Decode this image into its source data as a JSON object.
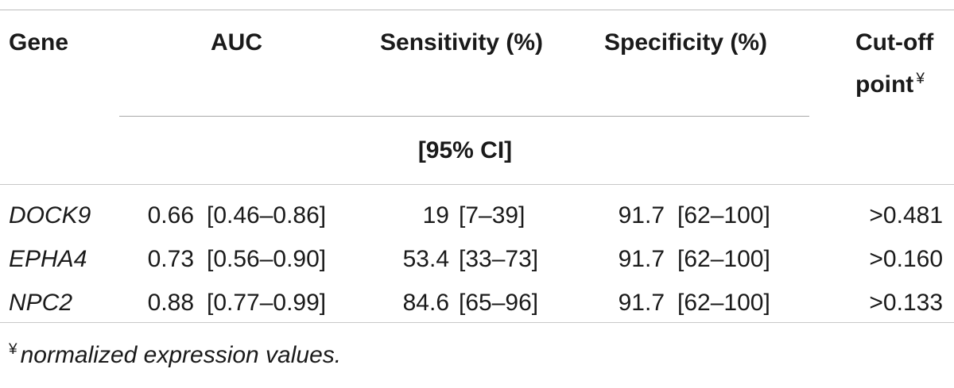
{
  "table": {
    "headers": {
      "gene": "Gene",
      "auc": "AUC",
      "sensitivity": "Sensitivity (%)",
      "specificity": "Specificity (%)",
      "cutoff_line1": "Cut-off",
      "cutoff_line2": "point",
      "cutoff_symbol": "¥",
      "ci": "[95% CI]"
    },
    "rows": [
      {
        "gene": "DOCK9",
        "auc_value": "0.66",
        "auc_ci": "[0.46–0.86]",
        "sens_value": "19",
        "sens_ci": "[7–39]",
        "spec_value": "91.7",
        "spec_ci": "[62–100]",
        "cutoff": ">0.481"
      },
      {
        "gene": "EPHA4",
        "auc_value": "0.73",
        "auc_ci": "[0.56–0.90]",
        "sens_value": "53.4",
        "sens_ci": "[33–73]",
        "spec_value": "91.7",
        "spec_ci": "[62–100]",
        "cutoff": ">0.160"
      },
      {
        "gene": "NPC2",
        "auc_value": "0.88",
        "auc_ci": "[0.77–0.99]",
        "sens_value": "84.6",
        "sens_ci": "[65–96]",
        "spec_value": "91.7",
        "spec_ci": "[62–100]",
        "cutoff": ">0.133"
      }
    ],
    "footnote": {
      "symbol": "¥",
      "text": "normalized expression values."
    }
  }
}
